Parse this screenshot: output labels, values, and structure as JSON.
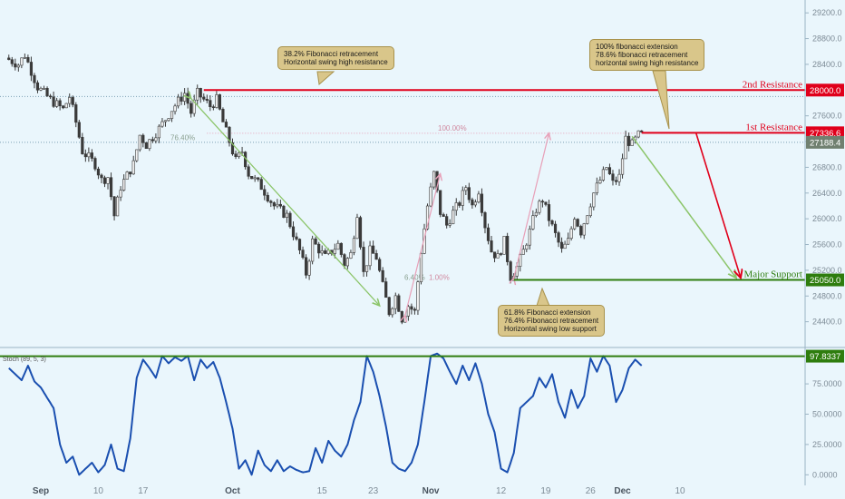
{
  "chart_data": {
    "type": "candlestick",
    "price_axis": {
      "ylim": [
        24000,
        29400
      ],
      "ticks": [
        "29200.0",
        "28800.0",
        "28400.0",
        "28000.0",
        "27600.0",
        "27200.0",
        "26800.0",
        "26400.0",
        "26000.0",
        "25600.0",
        "25200.0",
        "24800.0",
        "24400.0"
      ]
    },
    "stoch_axis": {
      "ylim": [
        -5,
        105
      ],
      "ticks": [
        "75.0000",
        "50.0000",
        "25.0000",
        "0.0000"
      ]
    },
    "x_labels": [
      {
        "day": 0,
        "label": "Sep",
        "bold": true
      },
      {
        "day": 9,
        "label": "10",
        "bold": false
      },
      {
        "day": 16,
        "label": "17",
        "bold": false
      },
      {
        "day": 30,
        "label": "Oct",
        "bold": true
      },
      {
        "day": 44,
        "label": "15",
        "bold": false
      },
      {
        "day": 52,
        "label": "23",
        "bold": false
      },
      {
        "day": 61,
        "label": "Nov",
        "bold": true
      },
      {
        "day": 72,
        "label": "12",
        "bold": false
      },
      {
        "day": 79,
        "label": "19",
        "bold": false
      },
      {
        "day": 86,
        "label": "26",
        "bold": false
      },
      {
        "day": 91,
        "label": "Dec",
        "bold": true
      },
      {
        "day": 100,
        "label": "10",
        "bold": false
      }
    ],
    "price_path": [
      [
        -5,
        28500
      ],
      [
        -3,
        28400
      ],
      [
        -2,
        28550
      ],
      [
        0,
        28050
      ],
      [
        2,
        27850
      ],
      [
        4,
        27700
      ],
      [
        5,
        27900
      ],
      [
        6,
        27500
      ],
      [
        7,
        27050
      ],
      [
        9,
        26850
      ],
      [
        10,
        26600
      ],
      [
        11,
        26650
      ],
      [
        12,
        26050
      ],
      [
        13,
        26500
      ],
      [
        15,
        26850
      ],
      [
        16,
        27300
      ],
      [
        17,
        27150
      ],
      [
        19,
        27400
      ],
      [
        21,
        27700
      ],
      [
        23,
        27950
      ],
      [
        24,
        27650
      ],
      [
        25,
        27950
      ],
      [
        27,
        27750
      ],
      [
        28,
        27850
      ],
      [
        29,
        27500
      ],
      [
        31,
        26900
      ],
      [
        32,
        27050
      ],
      [
        33,
        26700
      ],
      [
        35,
        26500
      ],
      [
        37,
        26200
      ],
      [
        39,
        26050
      ],
      [
        41,
        25500
      ],
      [
        42,
        25150
      ],
      [
        43,
        25650
      ],
      [
        45,
        25400
      ],
      [
        46,
        25500
      ],
      [
        47,
        25600
      ],
      [
        48,
        25300
      ],
      [
        49,
        25450
      ],
      [
        50,
        26100
      ],
      [
        51,
        25150
      ],
      [
        52,
        25500
      ],
      [
        53,
        25400
      ],
      [
        54,
        24950
      ],
      [
        55,
        24550
      ],
      [
        56,
        24800
      ],
      [
        57,
        24450
      ],
      [
        58,
        24650
      ],
      [
        59,
        24550
      ],
      [
        60,
        25500
      ],
      [
        61,
        26200
      ],
      [
        62,
        26700
      ],
      [
        63,
        26100
      ],
      [
        64,
        25900
      ],
      [
        65,
        26100
      ],
      [
        66,
        26250
      ],
      [
        67,
        26500
      ],
      [
        68,
        26200
      ],
      [
        69,
        26450
      ],
      [
        70,
        25900
      ],
      [
        71,
        25500
      ],
      [
        72,
        25400
      ],
      [
        73,
        25650
      ],
      [
        74,
        25100
      ],
      [
        75,
        25250
      ],
      [
        76,
        25500
      ],
      [
        77,
        25800
      ],
      [
        78,
        26150
      ],
      [
        79,
        26300
      ],
      [
        80,
        26000
      ],
      [
        81,
        25750
      ],
      [
        82,
        25500
      ],
      [
        83,
        25650
      ],
      [
        84,
        26050
      ],
      [
        85,
        25800
      ],
      [
        86,
        26100
      ],
      [
        87,
        26400
      ],
      [
        88,
        26600
      ],
      [
        89,
        26800
      ],
      [
        90,
        26550
      ],
      [
        91,
        26650
      ],
      [
        92,
        27250
      ],
      [
        93,
        27150
      ],
      [
        94,
        27300
      ]
    ],
    "stoch_path": [
      [
        -5,
        88
      ],
      [
        -3,
        78
      ],
      [
        -2,
        90
      ],
      [
        -1,
        77
      ],
      [
        0,
        72
      ],
      [
        2,
        55
      ],
      [
        3,
        25
      ],
      [
        4,
        10
      ],
      [
        5,
        15
      ],
      [
        6,
        0
      ],
      [
        8,
        10
      ],
      [
        9,
        2
      ],
      [
        10,
        8
      ],
      [
        11,
        25
      ],
      [
        12,
        5
      ],
      [
        13,
        3
      ],
      [
        14,
        30
      ],
      [
        15,
        80
      ],
      [
        16,
        95
      ],
      [
        17,
        88
      ],
      [
        18,
        80
      ],
      [
        19,
        98
      ],
      [
        20,
        92
      ],
      [
        21,
        97
      ],
      [
        22,
        94
      ],
      [
        23,
        98
      ],
      [
        24,
        78
      ],
      [
        25,
        95
      ],
      [
        26,
        88
      ],
      [
        27,
        93
      ],
      [
        28,
        80
      ],
      [
        29,
        60
      ],
      [
        30,
        38
      ],
      [
        31,
        5
      ],
      [
        32,
        12
      ],
      [
        33,
        0
      ],
      [
        34,
        20
      ],
      [
        35,
        8
      ],
      [
        36,
        3
      ],
      [
        37,
        12
      ],
      [
        38,
        3
      ],
      [
        39,
        7
      ],
      [
        40,
        4
      ],
      [
        41,
        2
      ],
      [
        42,
        3
      ],
      [
        43,
        22
      ],
      [
        44,
        10
      ],
      [
        45,
        28
      ],
      [
        46,
        20
      ],
      [
        47,
        15
      ],
      [
        48,
        25
      ],
      [
        49,
        45
      ],
      [
        50,
        60
      ],
      [
        51,
        98
      ],
      [
        52,
        85
      ],
      [
        53,
        65
      ],
      [
        54,
        40
      ],
      [
        55,
        10
      ],
      [
        56,
        5
      ],
      [
        57,
        3
      ],
      [
        58,
        10
      ],
      [
        59,
        25
      ],
      [
        60,
        60
      ],
      [
        61,
        98
      ],
      [
        62,
        100
      ],
      [
        63,
        96
      ],
      [
        64,
        85
      ],
      [
        65,
        75
      ],
      [
        66,
        90
      ],
      [
        67,
        78
      ],
      [
        68,
        92
      ],
      [
        69,
        75
      ],
      [
        70,
        50
      ],
      [
        71,
        35
      ],
      [
        72,
        5
      ],
      [
        73,
        2
      ],
      [
        74,
        18
      ],
      [
        75,
        55
      ],
      [
        76,
        60
      ],
      [
        77,
        65
      ],
      [
        78,
        80
      ],
      [
        79,
        72
      ],
      [
        80,
        83
      ],
      [
        81,
        60
      ],
      [
        82,
        47
      ],
      [
        83,
        70
      ],
      [
        84,
        55
      ],
      [
        85,
        65
      ],
      [
        86,
        96
      ],
      [
        87,
        85
      ],
      [
        88,
        98
      ],
      [
        89,
        90
      ],
      [
        90,
        60
      ],
      [
        91,
        70
      ],
      [
        92,
        88
      ],
      [
        93,
        95
      ],
      [
        94,
        90
      ]
    ],
    "levels": [
      {
        "label": "2nd Resistance",
        "value": "28000.0",
        "color": "#e0001b"
      },
      {
        "label": "1st Resistance",
        "value": "27336.6",
        "color": "#e0001b"
      },
      {
        "label": "Major Support",
        "value": "25050.0",
        "color": "#2e7d0e"
      }
    ],
    "current_price": {
      "value": "27188.4",
      "color": "#708070"
    },
    "stoch_current": {
      "value": "97.8337",
      "color": "#2e7d0e"
    },
    "fib_labels": [
      "76.40%",
      "100.00%",
      "6.40%",
      "1.00%"
    ],
    "stoch_label": "Stoch (89, 5, 3)",
    "annotations": [
      {
        "id": "ann1",
        "lines": [
          "38.2% Fibonacci retracement",
          "Horizontal swing high resistance"
        ]
      },
      {
        "id": "ann2",
        "lines": [
          "100% fibonacci extension",
          "78.6% fibonacci retracement",
          "horizontal swing high resistance"
        ]
      },
      {
        "id": "ann3",
        "lines": [
          "61.8% Fibonacci extension",
          "76.4% Fibonacci retracement",
          "Horizontal swing low support"
        ]
      }
    ],
    "colors": {
      "background": "#eaf6fc",
      "up_candle": "#3a3a3a",
      "down_candle": "#3a3a3a",
      "stoch_line": "#1a4fb0",
      "projection_red": "#e0001b",
      "projection_green": "#8cc56a",
      "pink_arrow": "#e8a0b8"
    }
  }
}
